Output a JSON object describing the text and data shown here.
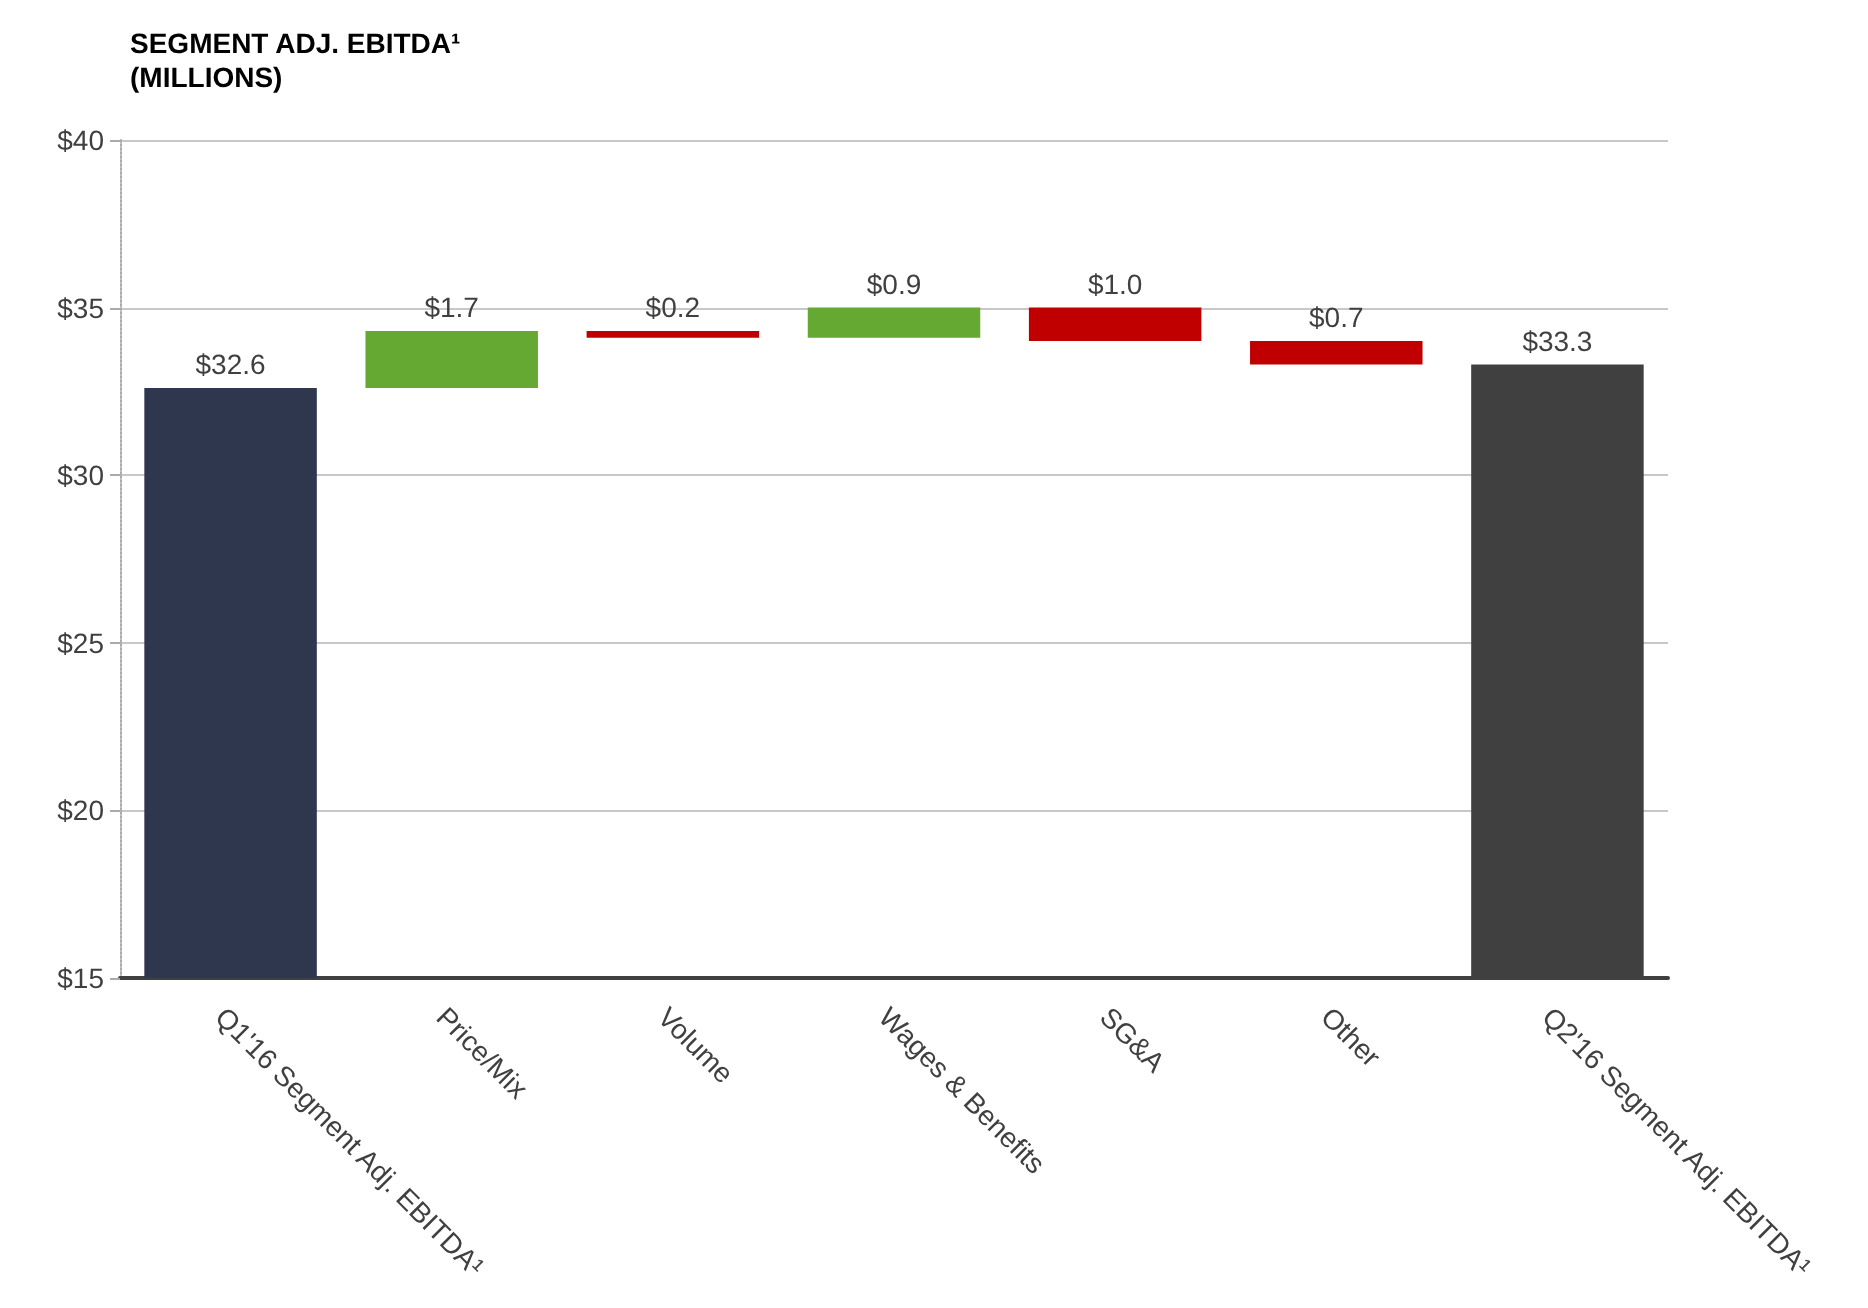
{
  "chart_data": {
    "type": "bar",
    "title": "SEGMENT ADJ. EBITDA¹\n(MILLIONS)",
    "categories": [
      "Q1'16 Segment Adj. EBITDA¹",
      "Price/Mix",
      "Volume",
      "Wages & Benefits",
      "SG&A",
      "Other",
      "Q2'16 Segment Adj. EBITDA¹"
    ],
    "values": [
      32.6,
      1.7,
      -0.2,
      0.9,
      -1.0,
      -0.7,
      33.3
    ],
    "base": [
      0,
      32.6,
      34.3,
      34.1,
      35.0,
      34.0,
      0
    ],
    "colors": [
      "#2e374d",
      "#65a832",
      "#c00000",
      "#65a832",
      "#c00000",
      "#c00000",
      "#404040"
    ],
    "value_labels": [
      "$32.6",
      "$1.7",
      "$0.2",
      "$0.9",
      "$1.0",
      "$0.7",
      "$33.3"
    ],
    "ylim": [
      15,
      40
    ],
    "yticks": [
      {
        "value": 15,
        "label": "$15"
      },
      {
        "value": 20,
        "label": "$20"
      },
      {
        "value": 25,
        "label": "$25"
      },
      {
        "value": 30,
        "label": "$30"
      },
      {
        "value": 35,
        "label": "$35"
      },
      {
        "value": 40,
        "label": "$40"
      }
    ],
    "grid": "y"
  }
}
